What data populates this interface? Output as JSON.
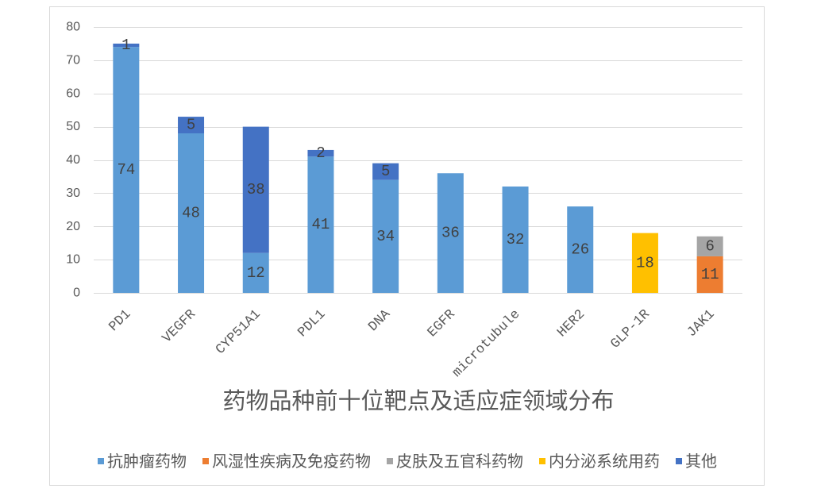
{
  "chart_data": {
    "type": "bar",
    "stacked": true,
    "title": "药物品种前十位靶点及适应症领域分布",
    "categories": [
      "PD1",
      "VEGFR",
      "CYP51A1",
      "PDL1",
      "DNA",
      "EGFR",
      "microtubule",
      "HER2",
      "GLP-1R",
      "JAK1"
    ],
    "series": [
      {
        "name": "抗肿瘤药物",
        "color": "#5B9BD5",
        "values": [
          74,
          48,
          12,
          41,
          34,
          36,
          32,
          26,
          null,
          null
        ]
      },
      {
        "name": "风湿性疾病及免疫药物",
        "color": "#ED7D31",
        "values": [
          null,
          null,
          null,
          null,
          null,
          null,
          null,
          null,
          null,
          11
        ]
      },
      {
        "name": "皮肤及五官科药物",
        "color": "#A5A5A5",
        "values": [
          null,
          null,
          null,
          null,
          null,
          null,
          null,
          null,
          null,
          6
        ]
      },
      {
        "name": "内分泌系统用药",
        "color": "#FFC000",
        "values": [
          null,
          null,
          null,
          null,
          null,
          null,
          null,
          null,
          18,
          null
        ]
      },
      {
        "name": "其他",
        "color": "#4472C4",
        "values": [
          1,
          5,
          38,
          2,
          5,
          null,
          null,
          null,
          null,
          null
        ]
      }
    ],
    "ylim": [
      0,
      80
    ],
    "yticks": [
      0,
      10,
      20,
      30,
      40,
      50,
      60,
      70,
      80
    ],
    "grid": true,
    "data_labels": true,
    "legend": "bottom"
  }
}
